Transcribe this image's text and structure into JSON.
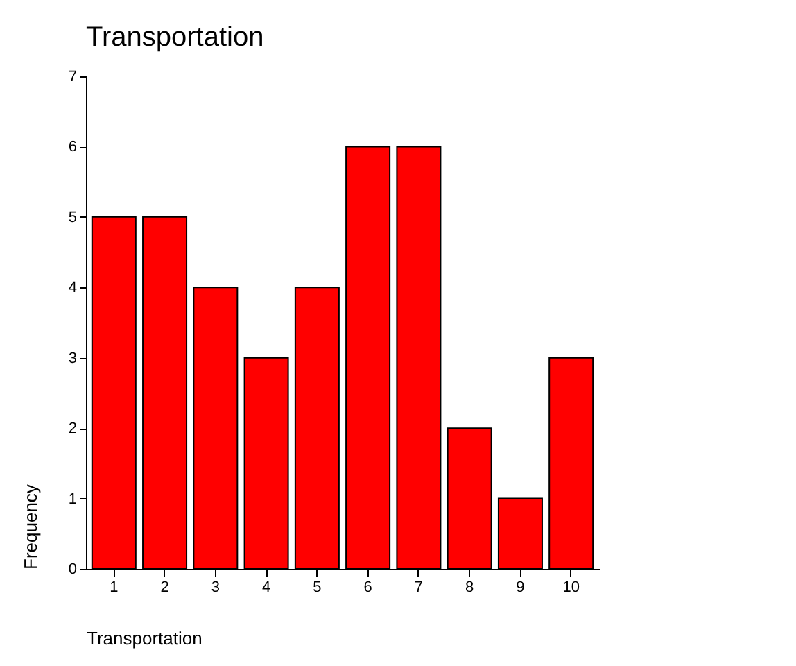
{
  "chart_data": {
    "type": "bar",
    "title": "Transportation",
    "xlabel": "Transportation",
    "ylabel": "Frequency",
    "categories": [
      "1",
      "2",
      "3",
      "4",
      "5",
      "6",
      "7",
      "8",
      "9",
      "10"
    ],
    "values": [
      5,
      5,
      4,
      3,
      4,
      6,
      6,
      2,
      1,
      3
    ],
    "color": "#ff0000",
    "ylim": [
      0,
      7
    ],
    "yticks": [
      0,
      1,
      2,
      3,
      4,
      5,
      6,
      7
    ],
    "grid": false
  }
}
